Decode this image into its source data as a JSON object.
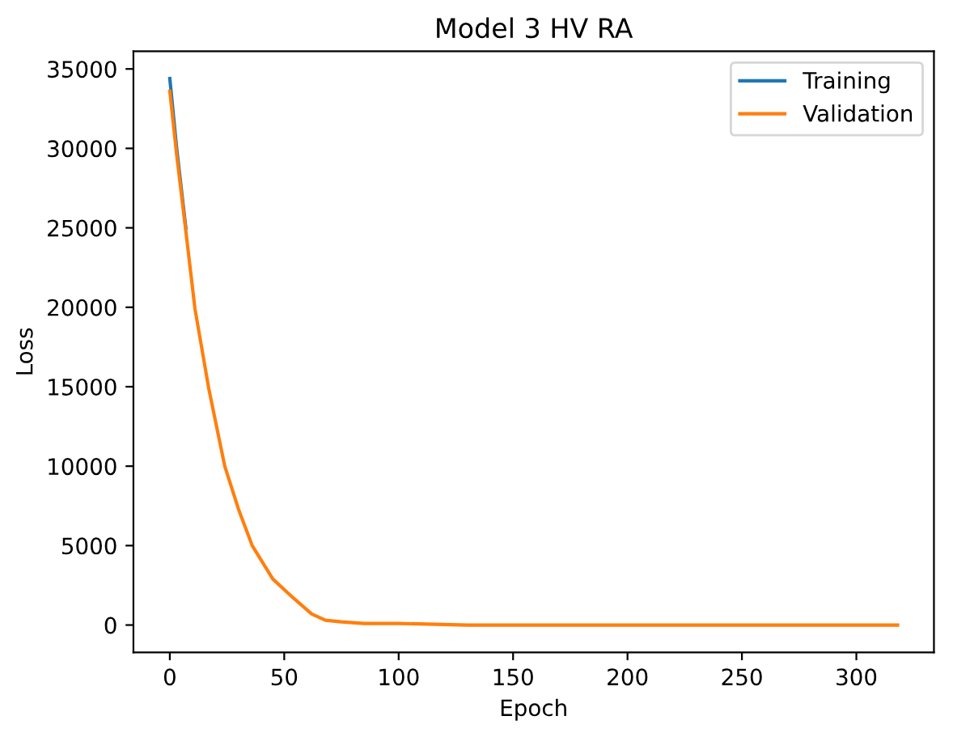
{
  "chart_data": {
    "type": "line",
    "title": "Model 3 HV RA",
    "xlabel": "Epoch",
    "ylabel": "Loss",
    "xlim": [
      -15.9,
      333.9
    ],
    "xticks": [
      0,
      50,
      100,
      150,
      200,
      250,
      300
    ],
    "ylim": [
      -1720,
      36110
    ],
    "yticks": [
      0,
      5000,
      10000,
      15000,
      20000,
      25000,
      30000,
      35000
    ],
    "grid": false,
    "legend": "top right",
    "marker": "none",
    "line_style": "solid",
    "series": [
      {
        "name": "Training",
        "color": "#1f77b4",
        "x": [
          0,
          3,
          7
        ],
        "values": [
          34400,
          30000,
          25000
        ]
      },
      {
        "name": "Validation",
        "color": "#ff7f0e",
        "x": [
          0,
          3,
          7,
          11,
          17,
          24,
          30,
          36,
          45,
          54,
          62,
          68,
          75,
          85,
          100,
          130,
          170,
          220,
          270,
          318
        ],
        "values": [
          33600,
          29600,
          24800,
          19900,
          14900,
          10000,
          7300,
          5000,
          2900,
          1700,
          700,
          300,
          200,
          100,
          100,
          0,
          0,
          0,
          0,
          0
        ]
      }
    ]
  }
}
